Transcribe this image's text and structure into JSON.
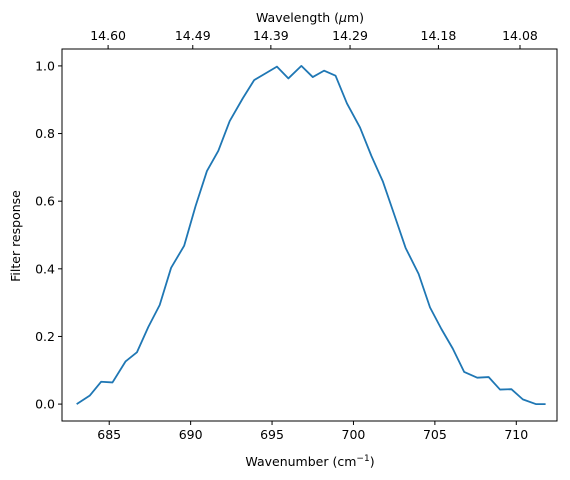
{
  "chart_data": {
    "type": "line",
    "title": "",
    "xlabel": "Wavenumber (cm",
    "xlabel_sup": "−1",
    "xlabel_tail": ")",
    "ylabel": "Filter response",
    "top_xlabel": "Wavelength (",
    "top_xlabel_mu": "μ",
    "top_xlabel_tail": "m)",
    "xlim": [
      682.1,
      712.5
    ],
    "ylim": [
      -0.05,
      1.05
    ],
    "grid": false,
    "line_color": "#1f77b4",
    "xticks": [
      685,
      690,
      695,
      700,
      705,
      710
    ],
    "xtick_labels": [
      "685",
      "690",
      "695",
      "700",
      "705",
      "710"
    ],
    "yticks": [
      0.0,
      0.2,
      0.4,
      0.6,
      0.8,
      1.0
    ],
    "ytick_labels": [
      "0.0",
      "0.2",
      "0.4",
      "0.6",
      "0.8",
      "1.0"
    ],
    "top_xticks": [
      14.6,
      14.49,
      14.39,
      14.29,
      14.18,
      14.08
    ],
    "top_xtick_labels": [
      "14.60",
      "14.49",
      "14.39",
      "14.29",
      "14.18",
      "14.08"
    ],
    "series": [
      {
        "x": [
          683.0,
          683.8,
          684.5,
          685.2,
          686.0,
          686.7,
          687.4,
          688.1,
          688.8,
          689.6,
          690.3,
          691.0,
          691.7,
          692.4,
          693.2,
          693.9,
          694.6,
          695.3,
          696.0,
          696.8,
          697.5,
          698.2,
          698.9,
          699.6,
          700.4,
          701.1,
          701.8,
          702.5,
          703.2,
          704.0,
          704.7,
          705.4,
          706.1,
          706.8,
          707.6,
          708.3,
          709.0,
          709.7,
          710.4,
          711.2,
          711.8
        ],
        "y": [
          0.0,
          0.025,
          0.066,
          0.064,
          0.126,
          0.153,
          0.228,
          0.293,
          0.403,
          0.468,
          0.585,
          0.689,
          0.749,
          0.837,
          0.904,
          0.958,
          0.978,
          0.998,
          0.963,
          1.0,
          0.967,
          0.986,
          0.971,
          0.889,
          0.818,
          0.734,
          0.659,
          0.561,
          0.462,
          0.385,
          0.286,
          0.222,
          0.164,
          0.095,
          0.078,
          0.08,
          0.043,
          0.044,
          0.014,
          0.0,
          0.0
        ]
      }
    ]
  }
}
